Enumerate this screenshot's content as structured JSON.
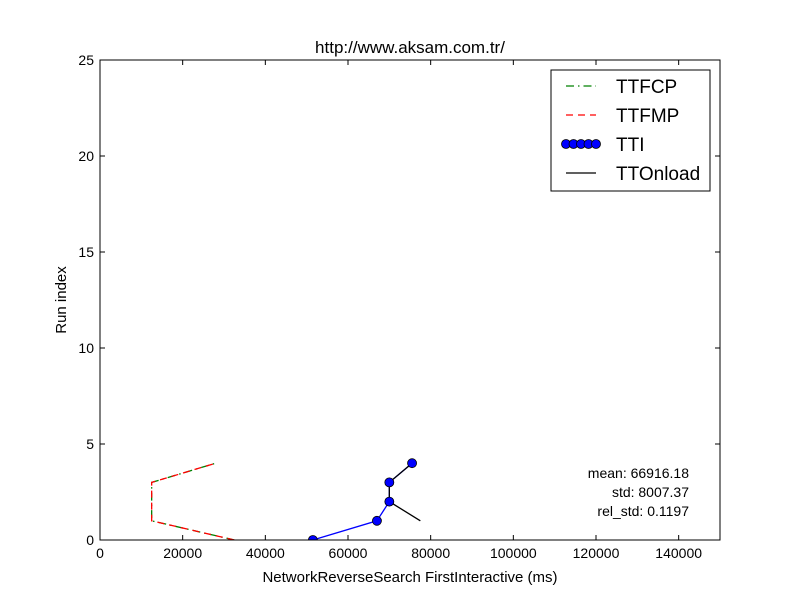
{
  "chart_data": {
    "type": "line",
    "title": "http://www.aksam.com.tr/",
    "xlabel": "NetworkReverseSearch FirstInteractive (ms)",
    "ylabel": "Run index",
    "xlim": [
      0,
      150000
    ],
    "ylim": [
      0,
      25
    ],
    "xticks": [
      0,
      20000,
      40000,
      60000,
      80000,
      100000,
      120000,
      140000
    ],
    "xtick_labels": [
      "0",
      "20000",
      "40000",
      "60000",
      "80000",
      "100000",
      "120000",
      "140000"
    ],
    "yticks": [
      0,
      5,
      10,
      15,
      20,
      25
    ],
    "ytick_labels": [
      "0",
      "5",
      "10",
      "15",
      "20",
      "25"
    ],
    "grid": false,
    "legend_position": "top-right",
    "series": [
      {
        "name": "TTFCP",
        "style": "dashdot",
        "color": "#008000",
        "x": [
          32500,
          12500,
          12500,
          28000
        ],
        "y": [
          0,
          1,
          3,
          4
        ]
      },
      {
        "name": "TTFMP",
        "style": "dashed",
        "color": "#ff0000",
        "x": [
          32500,
          12500,
          12500,
          28000
        ],
        "y": [
          0,
          1,
          3,
          4
        ]
      },
      {
        "name": "TTI",
        "style": "line-markers",
        "color": "#0000ff",
        "x": [
          51500,
          67000,
          70000,
          70000,
          75500
        ],
        "y": [
          0,
          1,
          2,
          3,
          4
        ]
      },
      {
        "name": "TTOnload",
        "style": "solid",
        "color": "#000000",
        "x": [
          77500,
          70000,
          70000,
          75500
        ],
        "y": [
          1,
          2,
          3,
          4
        ]
      }
    ],
    "annotations": [
      "mean: 66916.18",
      "std: 8007.37",
      "rel_std: 0.1197"
    ]
  }
}
